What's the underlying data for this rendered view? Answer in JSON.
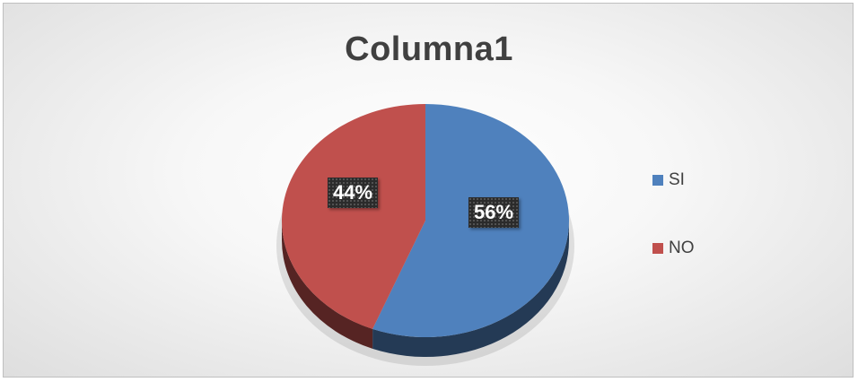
{
  "chart_data": {
    "type": "pie",
    "title": "Columna1",
    "categories": [
      "SI",
      "NO"
    ],
    "values": [
      56,
      44
    ],
    "data_labels": [
      "56%",
      "44%"
    ],
    "colors": [
      "#4f81bd",
      "#c0504d"
    ],
    "legend_position": "right",
    "three_d": true
  }
}
